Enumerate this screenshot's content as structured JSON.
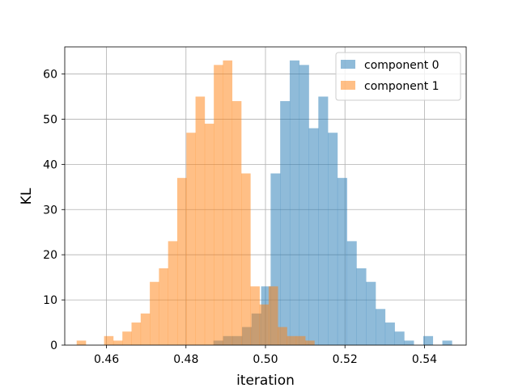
{
  "chart_data": {
    "type": "histogram",
    "xlabel": "iteration",
    "ylabel": "KL",
    "xlim": [
      0.4495,
      0.5505
    ],
    "ylim": [
      0,
      66
    ],
    "x_ticks": [
      0.46,
      0.48,
      0.5,
      0.52,
      0.54
    ],
    "x_tick_labels": [
      "0.46",
      "0.48",
      "0.50",
      "0.52",
      "0.54"
    ],
    "y_ticks": [
      0,
      10,
      20,
      30,
      40,
      50,
      60
    ],
    "y_tick_labels": [
      "0",
      "10",
      "20",
      "30",
      "40",
      "50",
      "60"
    ],
    "grid": true,
    "legend_position": "top-right",
    "series": [
      {
        "name": "component 0",
        "color": "#1f77b4",
        "alpha": 0.5,
        "bins": [
          [
            0.4869,
            0.4893,
            1
          ],
          [
            0.4893,
            0.4917,
            2
          ],
          [
            0.4917,
            0.4941,
            2
          ],
          [
            0.4941,
            0.4965,
            4
          ],
          [
            0.4965,
            0.4989,
            7
          ],
          [
            0.4989,
            0.5013,
            13
          ],
          [
            0.5013,
            0.5037,
            38
          ],
          [
            0.5037,
            0.5061,
            54
          ],
          [
            0.5061,
            0.5085,
            63
          ],
          [
            0.5085,
            0.5109,
            62
          ],
          [
            0.5109,
            0.5133,
            48
          ],
          [
            0.5133,
            0.5157,
            55
          ],
          [
            0.5157,
            0.5181,
            47
          ],
          [
            0.5181,
            0.5205,
            37
          ],
          [
            0.5205,
            0.5229,
            23
          ],
          [
            0.5229,
            0.5253,
            17
          ],
          [
            0.5253,
            0.5277,
            14
          ],
          [
            0.5277,
            0.5301,
            8
          ],
          [
            0.5301,
            0.5325,
            5
          ],
          [
            0.5325,
            0.5349,
            3
          ],
          [
            0.5349,
            0.5373,
            1
          ],
          [
            0.5373,
            0.5397,
            0
          ],
          [
            0.5397,
            0.5421,
            2
          ],
          [
            0.5421,
            0.5445,
            0
          ],
          [
            0.5445,
            0.5469,
            1
          ]
        ]
      },
      {
        "name": "component 1",
        "color": "#ff7f0e",
        "alpha": 0.5,
        "bins": [
          [
            0.4525,
            0.4548,
            1
          ],
          [
            0.4548,
            0.4571,
            0
          ],
          [
            0.4571,
            0.4594,
            0
          ],
          [
            0.4594,
            0.4617,
            2
          ],
          [
            0.4617,
            0.464,
            1
          ],
          [
            0.464,
            0.4663,
            3
          ],
          [
            0.4663,
            0.4686,
            5
          ],
          [
            0.4686,
            0.4709,
            7
          ],
          [
            0.4709,
            0.4732,
            14
          ],
          [
            0.4732,
            0.4755,
            17
          ],
          [
            0.4755,
            0.4778,
            23
          ],
          [
            0.4778,
            0.4801,
            37
          ],
          [
            0.4801,
            0.4824,
            47
          ],
          [
            0.4824,
            0.4847,
            55
          ],
          [
            0.4847,
            0.487,
            49
          ],
          [
            0.487,
            0.4893,
            62
          ],
          [
            0.4893,
            0.4916,
            63
          ],
          [
            0.4916,
            0.4939,
            54
          ],
          [
            0.4939,
            0.4962,
            38
          ],
          [
            0.4962,
            0.4985,
            13
          ],
          [
            0.4985,
            0.5008,
            9
          ],
          [
            0.5008,
            0.5031,
            13
          ],
          [
            0.5031,
            0.5054,
            4
          ],
          [
            0.5054,
            0.5077,
            2
          ],
          [
            0.5077,
            0.51,
            2
          ],
          [
            0.51,
            0.5123,
            1
          ]
        ]
      }
    ]
  }
}
